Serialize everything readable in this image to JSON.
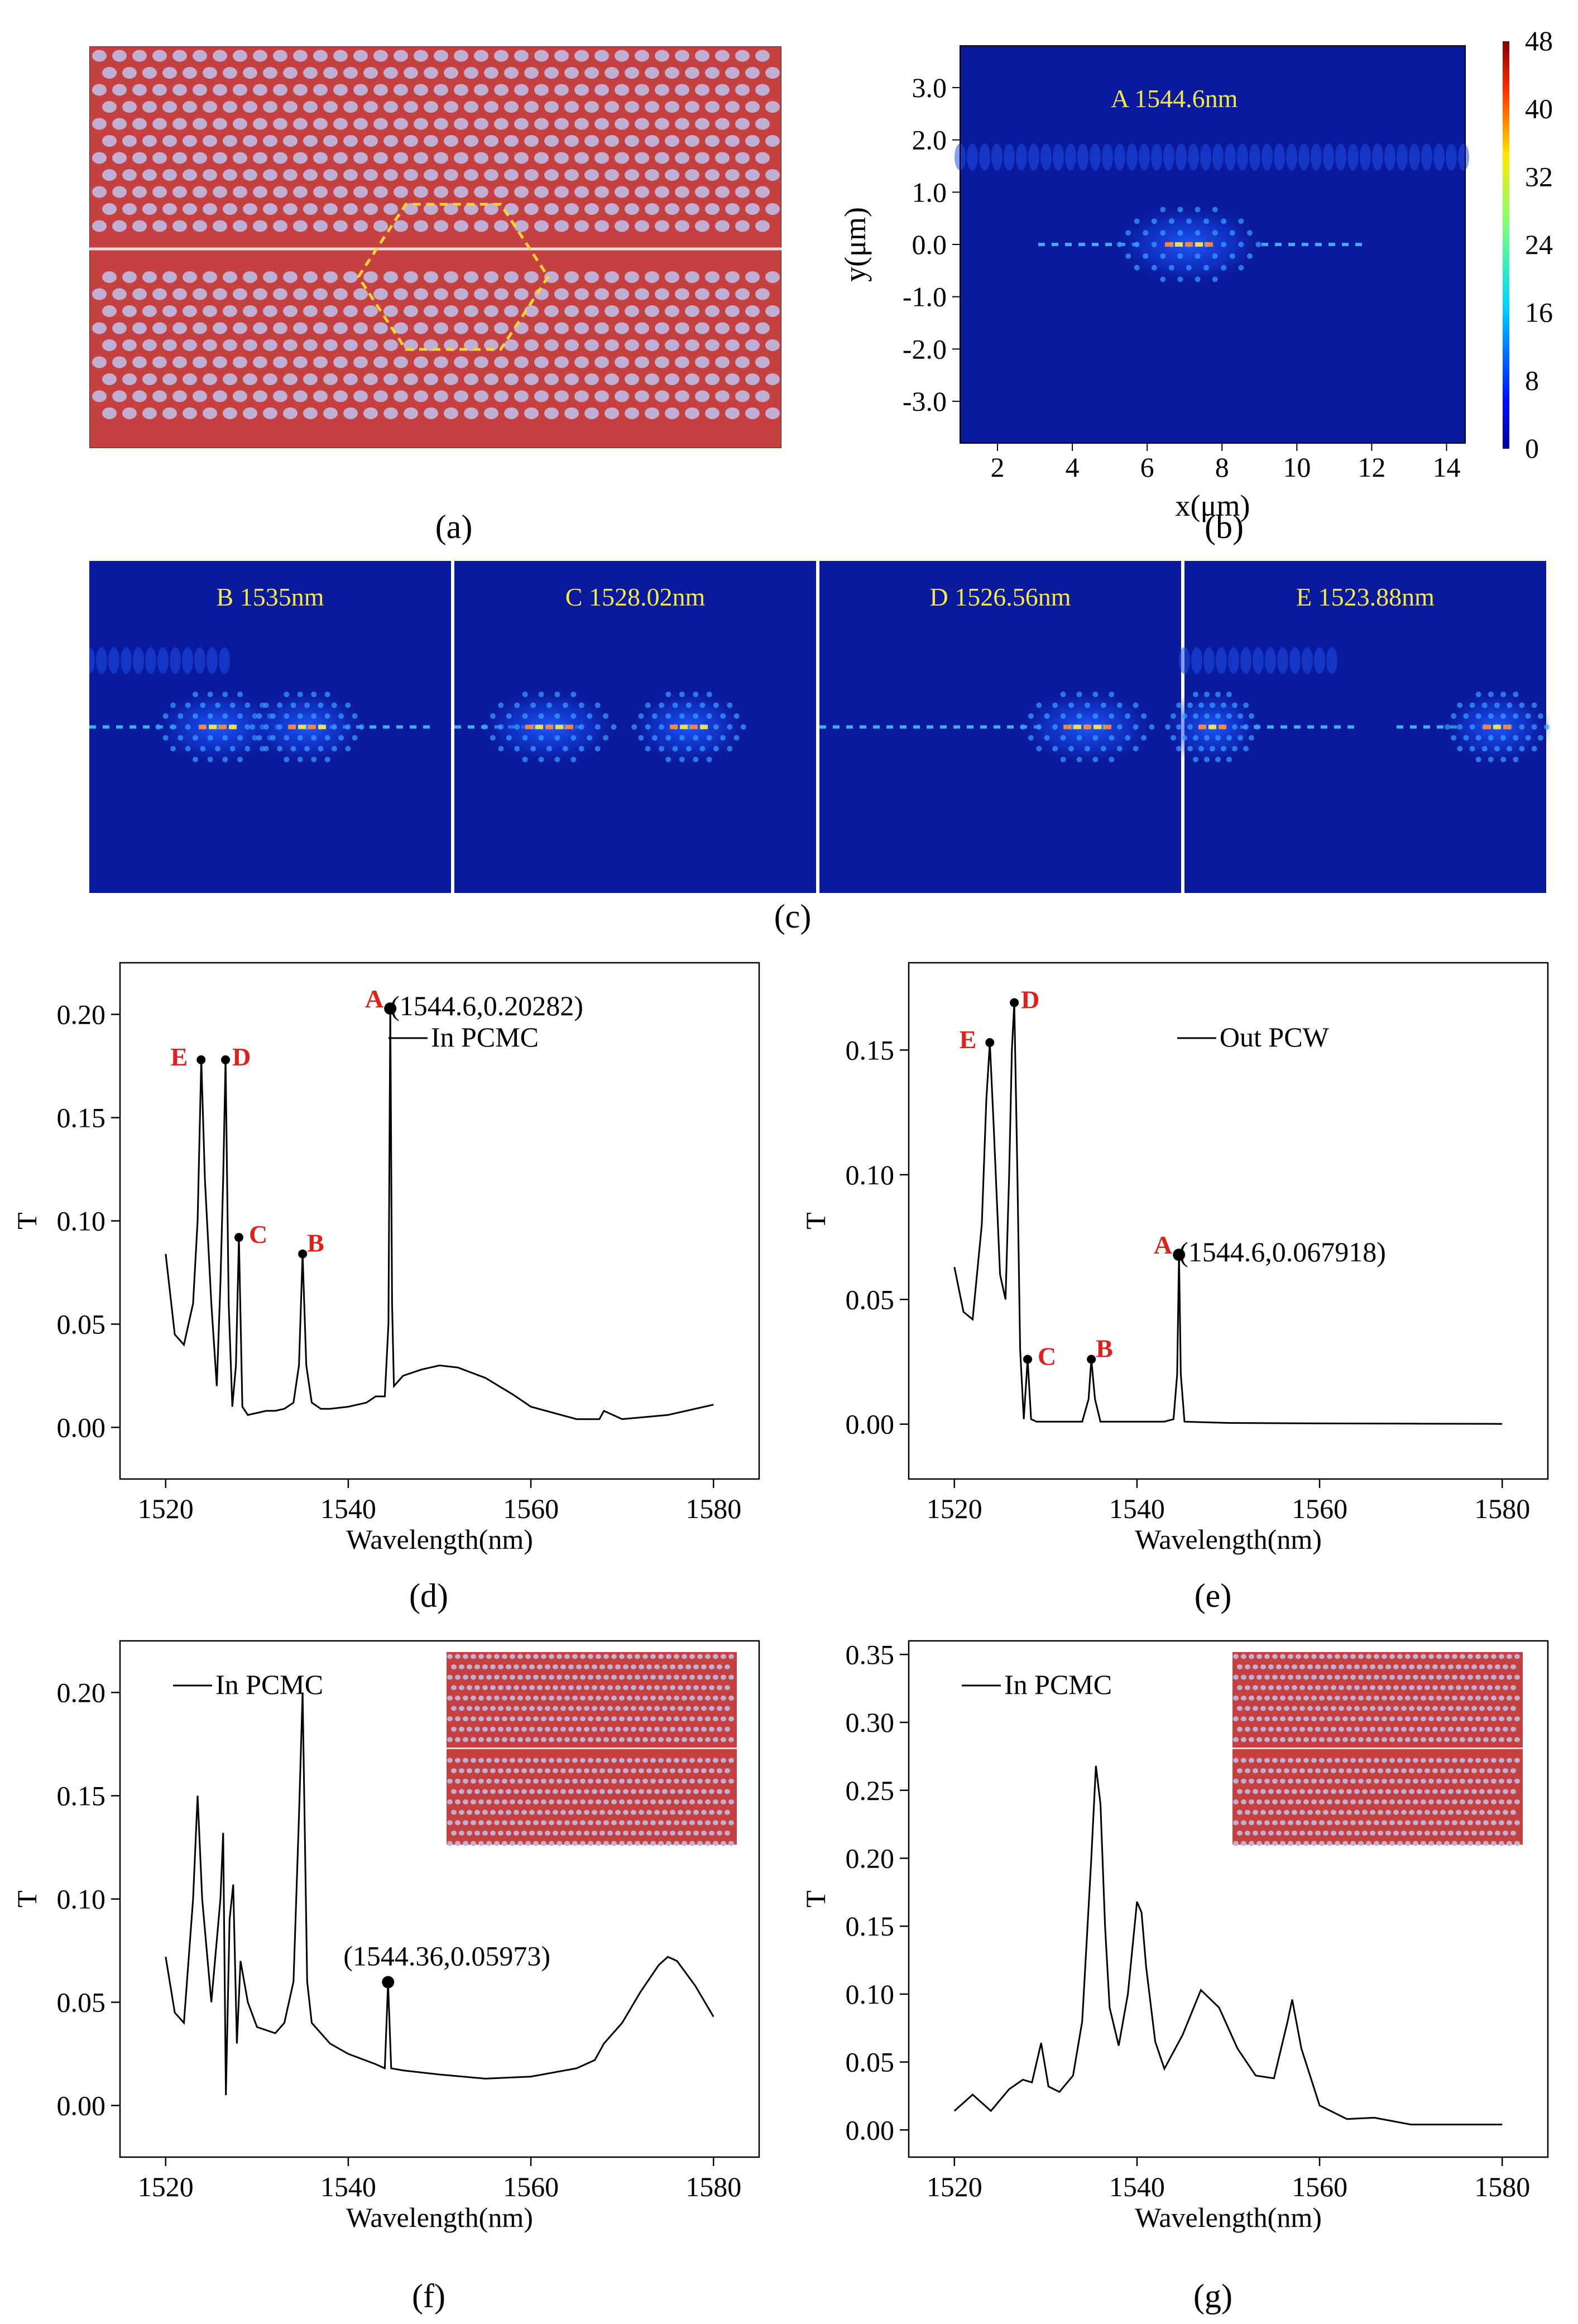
{
  "captions": {
    "a": "(a)",
    "b": "(b)",
    "c": "(c)",
    "d": "(d)",
    "e": "(e)",
    "f": "(f)",
    "g": "(g)"
  },
  "colors": {
    "slab": "#c5413f",
    "hole": "#c0aed3",
    "waveguide_line": "#e8dde4",
    "hexagon": "#f7d33a",
    "field_bg": "#0a1a9c",
    "label_yellow": "#f5e84a",
    "peak_red": "#e0201c"
  },
  "panel_b": {
    "label": "A 1544.6nm",
    "xlabel": "x(μm)",
    "ylabel": "y(μm)",
    "xticks": [
      "2",
      "4",
      "6",
      "8",
      "10",
      "12",
      "14"
    ],
    "yticks": [
      "3.0",
      "2.0",
      "1.0",
      "0.0",
      "-1.0",
      "-2.0",
      "-3.0"
    ],
    "colorbar_ticks": [
      "48",
      "40",
      "32",
      "24",
      "16",
      "8",
      "0"
    ]
  },
  "panel_c": {
    "modes": [
      {
        "label": "B 1535nm"
      },
      {
        "label": "C 1528.02nm"
      },
      {
        "label": "D 1526.56nm"
      },
      {
        "label": "E 1523.88nm"
      }
    ]
  },
  "chart_data": [
    {
      "id": "d",
      "type": "line",
      "xlabel": "Wavelength(nm)",
      "ylabel": "T",
      "xlim": [
        1515,
        1585
      ],
      "ylim": [
        -0.025,
        0.225
      ],
      "xticks": [
        1520,
        1540,
        1560,
        1580
      ],
      "yticks": [
        0.0,
        0.05,
        0.1,
        0.15,
        0.2
      ],
      "ytick_labels": [
        "0.00",
        "0.05",
        "0.10",
        "0.15",
        "0.20"
      ],
      "legend": "In PCMC",
      "legend_position": "top-right",
      "x": [
        1520,
        1521,
        1522,
        1523,
        1523.5,
        1523.9,
        1524.3,
        1525,
        1525.6,
        1526,
        1526.3,
        1526.56,
        1526.9,
        1527.3,
        1527.7,
        1528.02,
        1528.4,
        1529,
        1530,
        1531,
        1532,
        1533,
        1534,
        1534.6,
        1535,
        1535.4,
        1536,
        1537,
        1538,
        1540,
        1542,
        1543,
        1544,
        1544.4,
        1544.6,
        1544.8,
        1545,
        1546,
        1548,
        1550,
        1552,
        1555,
        1558,
        1560,
        1565,
        1567.5,
        1568,
        1570,
        1575,
        1580
      ],
      "y": [
        0.084,
        0.045,
        0.04,
        0.06,
        0.1,
        0.178,
        0.12,
        0.06,
        0.02,
        0.07,
        0.12,
        0.178,
        0.06,
        0.01,
        0.03,
        0.092,
        0.01,
        0.006,
        0.007,
        0.008,
        0.008,
        0.009,
        0.012,
        0.03,
        0.084,
        0.03,
        0.012,
        0.009,
        0.009,
        0.01,
        0.012,
        0.015,
        0.015,
        0.05,
        0.203,
        0.06,
        0.02,
        0.025,
        0.028,
        0.03,
        0.029,
        0.024,
        0.016,
        0.01,
        0.004,
        0.004,
        0.008,
        0.004,
        0.006,
        0.011
      ],
      "peaks": [
        {
          "name": "A",
          "x": 1544.6,
          "y": 0.20282,
          "annotation": "(1544.6,0.20282)"
        },
        {
          "name": "B",
          "x": 1535,
          "y": 0.084
        },
        {
          "name": "C",
          "x": 1528.02,
          "y": 0.092
        },
        {
          "name": "D",
          "x": 1526.56,
          "y": 0.178
        },
        {
          "name": "E",
          "x": 1523.88,
          "y": 0.178
        }
      ]
    },
    {
      "id": "e",
      "type": "line",
      "xlabel": "Wavelength(nm)",
      "ylabel": "T",
      "xlim": [
        1515,
        1585
      ],
      "ylim": [
        -0.022,
        0.185
      ],
      "xticks": [
        1520,
        1540,
        1560,
        1580
      ],
      "yticks": [
        0.0,
        0.05,
        0.1,
        0.15
      ],
      "ytick_labels": [
        "0.00",
        "0.05",
        "0.10",
        "0.15"
      ],
      "legend": "Out PCW",
      "legend_position": "top-right",
      "x": [
        1520,
        1521,
        1522,
        1523,
        1523.5,
        1523.88,
        1524.3,
        1525,
        1525.6,
        1526,
        1526.3,
        1526.56,
        1526.9,
        1527.2,
        1527.6,
        1528.02,
        1528.4,
        1529,
        1532,
        1534,
        1534.7,
        1535,
        1535.4,
        1536,
        1540,
        1543,
        1544,
        1544.4,
        1544.6,
        1544.8,
        1545.2,
        1547,
        1550,
        1560,
        1570,
        1580
      ],
      "y": [
        0.063,
        0.045,
        0.042,
        0.08,
        0.13,
        0.153,
        0.12,
        0.06,
        0.05,
        0.1,
        0.15,
        0.169,
        0.1,
        0.03,
        0.002,
        0.026,
        0.002,
        0.001,
        0.001,
        0.001,
        0.01,
        0.026,
        0.01,
        0.001,
        0.001,
        0.001,
        0.002,
        0.02,
        0.0679,
        0.02,
        0.001,
        0.0008,
        0.0005,
        0.0003,
        0.0002,
        0.0001
      ],
      "peaks": [
        {
          "name": "A",
          "x": 1544.6,
          "y": 0.067918,
          "annotation": "(1544.6,0.067918)"
        },
        {
          "name": "B",
          "x": 1535,
          "y": 0.026
        },
        {
          "name": "C",
          "x": 1528.02,
          "y": 0.026
        },
        {
          "name": "D",
          "x": 1526.56,
          "y": 0.169
        },
        {
          "name": "E",
          "x": 1523.88,
          "y": 0.153
        }
      ]
    },
    {
      "id": "f",
      "type": "line",
      "xlabel": "Wavelength(nm)",
      "ylabel": "T",
      "xlim": [
        1515,
        1585
      ],
      "ylim": [
        -0.025,
        0.225
      ],
      "xticks": [
        1520,
        1540,
        1560,
        1580
      ],
      "yticks": [
        0.0,
        0.05,
        0.1,
        0.15,
        0.2
      ],
      "ytick_labels": [
        "0.00",
        "0.05",
        "0.10",
        "0.15",
        "0.20"
      ],
      "legend": "In PCMC",
      "legend_position": "top-left",
      "x": [
        1520,
        1521,
        1522,
        1523,
        1523.5,
        1524,
        1525,
        1526,
        1526.3,
        1526.6,
        1527,
        1527.4,
        1527.8,
        1528.2,
        1529,
        1530,
        1532,
        1533,
        1534,
        1534.6,
        1535,
        1535.5,
        1536,
        1538,
        1540,
        1543,
        1544,
        1544.36,
        1544.7,
        1546,
        1550,
        1555,
        1560,
        1565,
        1567,
        1568,
        1570,
        1572,
        1574,
        1575,
        1576,
        1578,
        1580
      ],
      "y": [
        0.072,
        0.045,
        0.04,
        0.1,
        0.15,
        0.1,
        0.05,
        0.1,
        0.132,
        0.005,
        0.09,
        0.107,
        0.03,
        0.07,
        0.05,
        0.038,
        0.035,
        0.04,
        0.06,
        0.14,
        0.2,
        0.06,
        0.04,
        0.03,
        0.025,
        0.02,
        0.018,
        0.05973,
        0.018,
        0.017,
        0.015,
        0.013,
        0.014,
        0.018,
        0.022,
        0.03,
        0.04,
        0.055,
        0.068,
        0.072,
        0.07,
        0.058,
        0.043
      ],
      "peaks": [
        {
          "name": "",
          "x": 1544.36,
          "y": 0.05973,
          "annotation": "(1544.36,0.05973)"
        }
      ]
    },
    {
      "id": "g",
      "type": "line",
      "xlabel": "Wavelength(nm)",
      "ylabel": "T",
      "xlim": [
        1515,
        1585
      ],
      "ylim": [
        -0.02,
        0.36
      ],
      "xticks": [
        1520,
        1540,
        1560,
        1580
      ],
      "yticks": [
        0.0,
        0.05,
        0.1,
        0.15,
        0.2,
        0.25,
        0.3,
        0.35
      ],
      "ytick_labels": [
        "0.00",
        "0.05",
        "0.10",
        "0.15",
        "0.20",
        "0.25",
        "0.30",
        "0.35"
      ],
      "legend": "In PCMC",
      "legend_position": "top-left",
      "x": [
        1520,
        1522,
        1524,
        1526,
        1527.5,
        1528.5,
        1529.5,
        1530.3,
        1531.5,
        1533,
        1534,
        1535,
        1535.5,
        1536,
        1536.5,
        1537,
        1538,
        1539,
        1540,
        1540.5,
        1541,
        1542,
        1543,
        1545,
        1547,
        1549,
        1551,
        1553,
        1555,
        1556.5,
        1557,
        1558,
        1560,
        1563,
        1566,
        1570,
        1575,
        1580
      ],
      "y": [
        0.014,
        0.026,
        0.014,
        0.03,
        0.037,
        0.035,
        0.064,
        0.032,
        0.028,
        0.04,
        0.08,
        0.2,
        0.268,
        0.24,
        0.15,
        0.09,
        0.062,
        0.1,
        0.168,
        0.16,
        0.12,
        0.065,
        0.045,
        0.07,
        0.103,
        0.09,
        0.06,
        0.04,
        0.038,
        0.08,
        0.096,
        0.06,
        0.018,
        0.008,
        0.009,
        0.004,
        0.004,
        0.004
      ],
      "peaks": []
    }
  ]
}
